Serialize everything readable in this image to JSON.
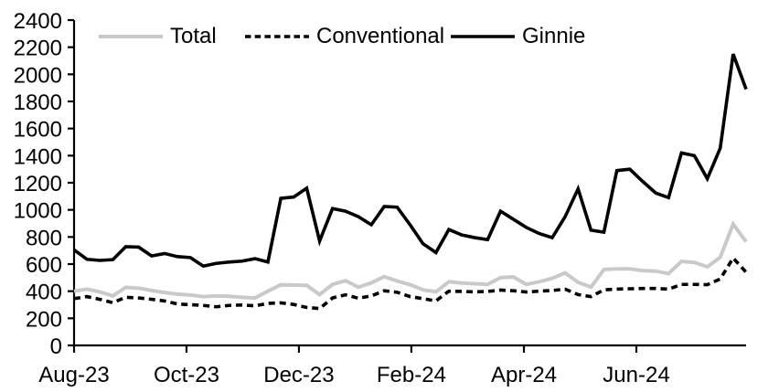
{
  "chart_data": {
    "type": "line",
    "title": "",
    "background": "#ffffff",
    "axis_color": "#000000",
    "grid": false,
    "legend_position": "top-inside",
    "x_axis": {
      "total_weeks": 52,
      "ticks": [
        {
          "label": "Aug-23",
          "week": 0
        },
        {
          "label": "Oct-23",
          "week": 8.7
        },
        {
          "label": "Dec-23",
          "week": 17.4
        },
        {
          "label": "Feb-24",
          "week": 26.1
        },
        {
          "label": "Apr-24",
          "week": 34.81
        },
        {
          "label": "Jun-24",
          "week": 43.51
        }
      ]
    },
    "y_axis": {
      "min": 0,
      "max": 2400,
      "step": 200,
      "tick_labels": [
        "0",
        "200",
        "400",
        "600",
        "800",
        "1000",
        "1200",
        "1400",
        "1600",
        "1800",
        "2000",
        "2200",
        "2400"
      ]
    },
    "series": [
      {
        "name": "Total",
        "color": "#c9c9c9",
        "style": "solid",
        "values": [
          400,
          415,
          395,
          365,
          428,
          422,
          405,
          390,
          378,
          372,
          360,
          365,
          362,
          355,
          350,
          400,
          447,
          445,
          443,
          375,
          450,
          477,
          430,
          462,
          507,
          475,
          448,
          410,
          395,
          470,
          460,
          455,
          450,
          500,
          505,
          450,
          470,
          495,
          535,
          465,
          430,
          560,
          565,
          565,
          552,
          548,
          530,
          620,
          612,
          580,
          650,
          895,
          765
        ]
      },
      {
        "name": "Conventional",
        "color": "#000000",
        "style": "dashed",
        "values": [
          345,
          360,
          340,
          315,
          355,
          350,
          340,
          328,
          305,
          300,
          295,
          285,
          295,
          298,
          292,
          310,
          314,
          302,
          280,
          272,
          350,
          373,
          348,
          365,
          403,
          392,
          360,
          345,
          328,
          400,
          398,
          395,
          398,
          408,
          403,
          394,
          400,
          405,
          415,
          375,
          360,
          410,
          415,
          418,
          420,
          420,
          415,
          450,
          450,
          448,
          490,
          645,
          540
        ]
      },
      {
        "name": "Ginnie",
        "color": "#000000",
        "style": "solid",
        "values": [
          705,
          635,
          627,
          633,
          728,
          725,
          660,
          678,
          655,
          648,
          585,
          605,
          615,
          622,
          640,
          615,
          1085,
          1095,
          1160,
          770,
          1010,
          990,
          950,
          890,
          1025,
          1020,
          890,
          750,
          685,
          855,
          815,
          795,
          780,
          990,
          930,
          870,
          825,
          795,
          950,
          1155,
          850,
          835,
          1290,
          1300,
          1210,
          1125,
          1090,
          1420,
          1400,
          1230,
          1455,
          2150,
          1890
        ]
      }
    ]
  }
}
